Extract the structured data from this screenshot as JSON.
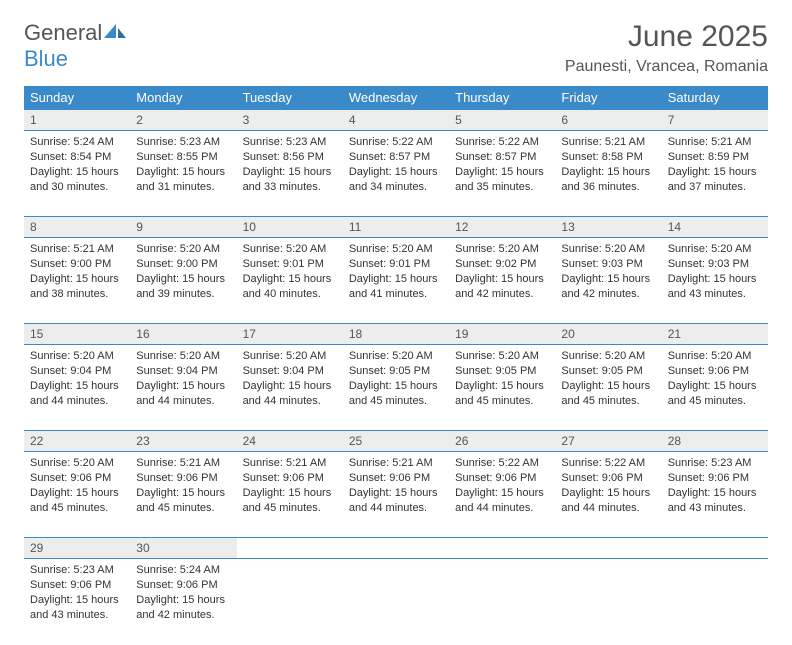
{
  "logo": {
    "text_general": "General",
    "text_blue": "Blue"
  },
  "title": "June 2025",
  "location": "Paunesti, Vrancea, Romania",
  "colors": {
    "header_bg": "#3a8ac9",
    "header_text": "#ffffff",
    "daynum_bg": "#eceded",
    "border": "#3a8ac9",
    "body_text": "#333333",
    "page_bg": "#ffffff"
  },
  "weekdays": [
    "Sunday",
    "Monday",
    "Tuesday",
    "Wednesday",
    "Thursday",
    "Friday",
    "Saturday"
  ],
  "weeks": [
    [
      {
        "day": "1",
        "sunrise": "5:24 AM",
        "sunset": "8:54 PM",
        "daylight": "15 hours and 30 minutes."
      },
      {
        "day": "2",
        "sunrise": "5:23 AM",
        "sunset": "8:55 PM",
        "daylight": "15 hours and 31 minutes."
      },
      {
        "day": "3",
        "sunrise": "5:23 AM",
        "sunset": "8:56 PM",
        "daylight": "15 hours and 33 minutes."
      },
      {
        "day": "4",
        "sunrise": "5:22 AM",
        "sunset": "8:57 PM",
        "daylight": "15 hours and 34 minutes."
      },
      {
        "day": "5",
        "sunrise": "5:22 AM",
        "sunset": "8:57 PM",
        "daylight": "15 hours and 35 minutes."
      },
      {
        "day": "6",
        "sunrise": "5:21 AM",
        "sunset": "8:58 PM",
        "daylight": "15 hours and 36 minutes."
      },
      {
        "day": "7",
        "sunrise": "5:21 AM",
        "sunset": "8:59 PM",
        "daylight": "15 hours and 37 minutes."
      }
    ],
    [
      {
        "day": "8",
        "sunrise": "5:21 AM",
        "sunset": "9:00 PM",
        "daylight": "15 hours and 38 minutes."
      },
      {
        "day": "9",
        "sunrise": "5:20 AM",
        "sunset": "9:00 PM",
        "daylight": "15 hours and 39 minutes."
      },
      {
        "day": "10",
        "sunrise": "5:20 AM",
        "sunset": "9:01 PM",
        "daylight": "15 hours and 40 minutes."
      },
      {
        "day": "11",
        "sunrise": "5:20 AM",
        "sunset": "9:01 PM",
        "daylight": "15 hours and 41 minutes."
      },
      {
        "day": "12",
        "sunrise": "5:20 AM",
        "sunset": "9:02 PM",
        "daylight": "15 hours and 42 minutes."
      },
      {
        "day": "13",
        "sunrise": "5:20 AM",
        "sunset": "9:03 PM",
        "daylight": "15 hours and 42 minutes."
      },
      {
        "day": "14",
        "sunrise": "5:20 AM",
        "sunset": "9:03 PM",
        "daylight": "15 hours and 43 minutes."
      }
    ],
    [
      {
        "day": "15",
        "sunrise": "5:20 AM",
        "sunset": "9:04 PM",
        "daylight": "15 hours and 44 minutes."
      },
      {
        "day": "16",
        "sunrise": "5:20 AM",
        "sunset": "9:04 PM",
        "daylight": "15 hours and 44 minutes."
      },
      {
        "day": "17",
        "sunrise": "5:20 AM",
        "sunset": "9:04 PM",
        "daylight": "15 hours and 44 minutes."
      },
      {
        "day": "18",
        "sunrise": "5:20 AM",
        "sunset": "9:05 PM",
        "daylight": "15 hours and 45 minutes."
      },
      {
        "day": "19",
        "sunrise": "5:20 AM",
        "sunset": "9:05 PM",
        "daylight": "15 hours and 45 minutes."
      },
      {
        "day": "20",
        "sunrise": "5:20 AM",
        "sunset": "9:05 PM",
        "daylight": "15 hours and 45 minutes."
      },
      {
        "day": "21",
        "sunrise": "5:20 AM",
        "sunset": "9:06 PM",
        "daylight": "15 hours and 45 minutes."
      }
    ],
    [
      {
        "day": "22",
        "sunrise": "5:20 AM",
        "sunset": "9:06 PM",
        "daylight": "15 hours and 45 minutes."
      },
      {
        "day": "23",
        "sunrise": "5:21 AM",
        "sunset": "9:06 PM",
        "daylight": "15 hours and 45 minutes."
      },
      {
        "day": "24",
        "sunrise": "5:21 AM",
        "sunset": "9:06 PM",
        "daylight": "15 hours and 45 minutes."
      },
      {
        "day": "25",
        "sunrise": "5:21 AM",
        "sunset": "9:06 PM",
        "daylight": "15 hours and 44 minutes."
      },
      {
        "day": "26",
        "sunrise": "5:22 AM",
        "sunset": "9:06 PM",
        "daylight": "15 hours and 44 minutes."
      },
      {
        "day": "27",
        "sunrise": "5:22 AM",
        "sunset": "9:06 PM",
        "daylight": "15 hours and 44 minutes."
      },
      {
        "day": "28",
        "sunrise": "5:23 AM",
        "sunset": "9:06 PM",
        "daylight": "15 hours and 43 minutes."
      }
    ],
    [
      {
        "day": "29",
        "sunrise": "5:23 AM",
        "sunset": "9:06 PM",
        "daylight": "15 hours and 43 minutes."
      },
      {
        "day": "30",
        "sunrise": "5:24 AM",
        "sunset": "9:06 PM",
        "daylight": "15 hours and 42 minutes."
      },
      null,
      null,
      null,
      null,
      null
    ]
  ],
  "labels": {
    "sunrise": "Sunrise:",
    "sunset": "Sunset:",
    "daylight": "Daylight:"
  }
}
